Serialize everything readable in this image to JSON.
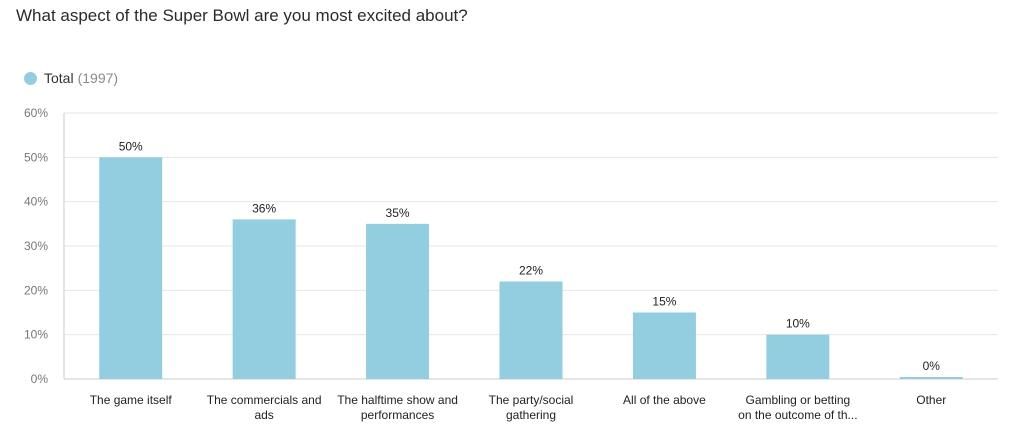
{
  "chart_data": {
    "type": "bar",
    "title": "What aspect of the Super Bowl are you most excited about?",
    "series": [
      {
        "name": "Total",
        "count_label": "(1997)",
        "values": [
          50,
          36,
          35,
          22,
          15,
          10,
          0
        ]
      }
    ],
    "categories": [
      [
        "The game itself"
      ],
      [
        "The commercials and",
        "ads"
      ],
      [
        "The halftime show and",
        "performances"
      ],
      [
        "The party/social",
        "gathering"
      ],
      [
        "All of the above"
      ],
      [
        "Gambling or betting",
        "on the outcome of th..."
      ],
      [
        "Other"
      ]
    ],
    "value_labels": [
      "50%",
      "36%",
      "35%",
      "22%",
      "15%",
      "10%",
      "0%"
    ],
    "y_ticks": [
      0,
      10,
      20,
      30,
      40,
      50,
      60
    ],
    "y_tick_labels": [
      "0%",
      "10%",
      "20%",
      "30%",
      "40%",
      "50%",
      "60%"
    ],
    "ylim": [
      0,
      60
    ],
    "xlabel": "",
    "ylabel": "",
    "grid": true,
    "legend_position": "top-left"
  },
  "colors": {
    "bar": "#92cde0",
    "grid": "#e6e6e6",
    "axis": "#cccccc"
  }
}
